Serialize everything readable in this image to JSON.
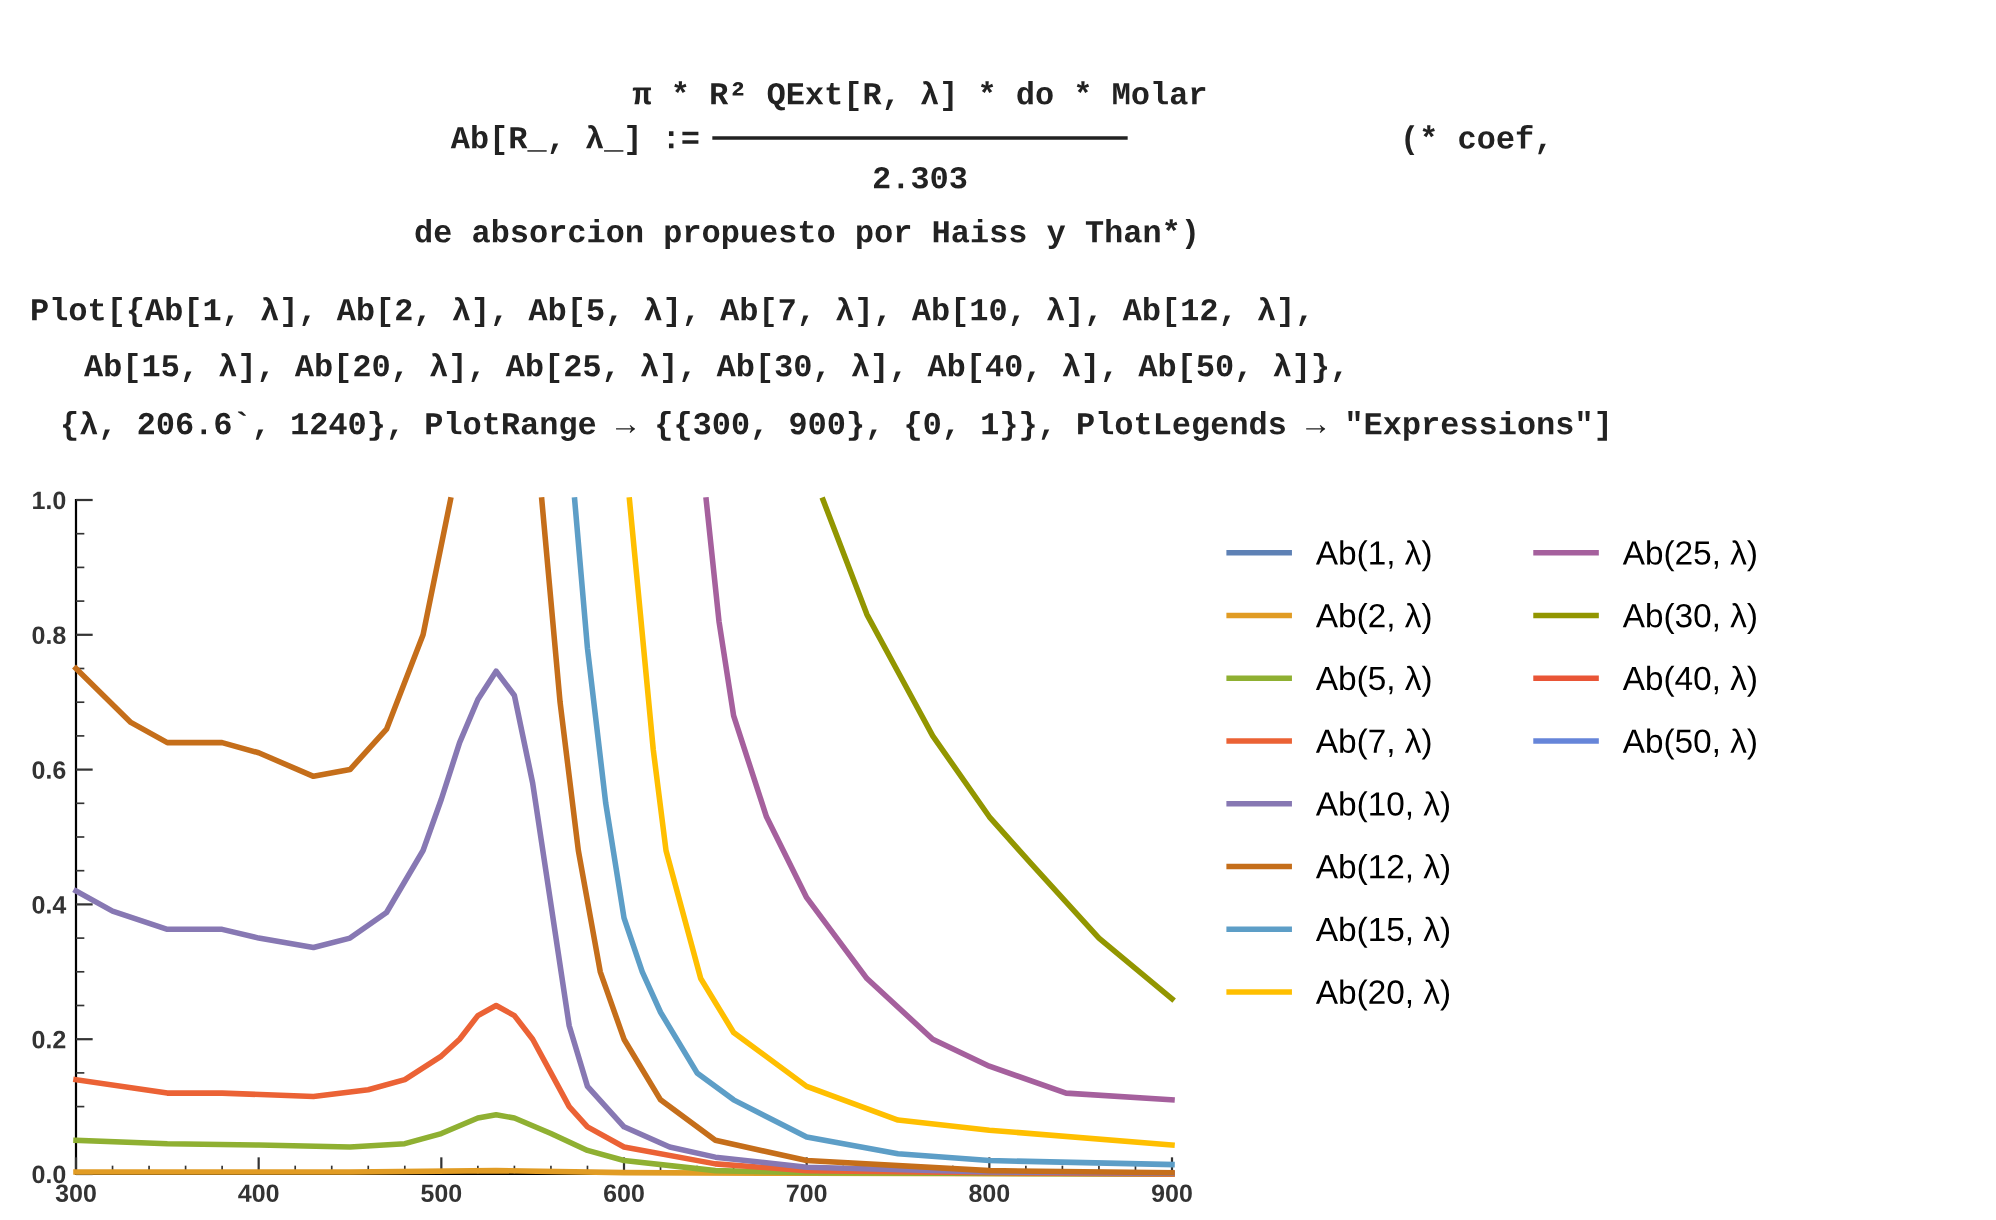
{
  "chart_data": {
    "type": "line",
    "annotations": [
      "Ab[R_, λ_] :=",
      "π * R² QExt[R, λ] * do * Molar",
      "2.303",
      "(* coef,",
      "de absorcion propuesto por Haiss y Than*)",
      "Plot[{Ab[1, λ], Ab[2, λ], Ab[5, λ], Ab[7, λ], Ab[10, λ], Ab[12, λ],",
      "Ab[15, λ], Ab[20, λ], Ab[25, λ], Ab[30, λ], Ab[40, λ], Ab[50, λ]},",
      "{λ, 206.6`, 1240}, PlotRange → {{300, 900}, {0, 1}}, PlotLegends → \"Expressions\"]"
    ],
    "xlim": [
      300,
      900
    ],
    "ylim": [
      0,
      1
    ],
    "xticks": [
      300,
      {
        "value": 320,
        "label": null
      },
      {
        "value": 340,
        "label": null
      },
      {
        "value": 360,
        "label": null
      },
      {
        "value": 380,
        "label": null
      },
      400,
      {
        "value": 420,
        "label": null
      },
      {
        "value": 440,
        "label": null
      },
      {
        "value": 460,
        "label": null
      },
      {
        "value": 480,
        "label": null
      },
      500,
      {
        "value": 520,
        "label": null
      },
      {
        "value": 540,
        "label": null
      },
      {
        "value": 560,
        "label": null
      },
      {
        "value": 580,
        "label": null
      },
      600,
      {
        "value": 620,
        "label": null
      },
      {
        "value": 640,
        "label": null
      },
      {
        "value": 660,
        "label": null
      },
      {
        "value": 680,
        "label": null
      },
      700,
      {
        "value": 720,
        "label": null
      },
      {
        "value": 740,
        "label": null
      },
      {
        "value": 760,
        "label": null
      },
      {
        "value": 780,
        "label": null
      },
      800,
      {
        "value": 820,
        "label": null
      },
      {
        "value": 840,
        "label": null
      },
      {
        "value": 860,
        "label": null
      },
      {
        "value": 880,
        "label": null
      },
      900
    ],
    "yticks": [
      {
        "value": 0,
        "label": "0.0"
      },
      {
        "value": 0.05,
        "label": null
      },
      {
        "value": 0.1,
        "label": null
      },
      {
        "value": 0.15,
        "label": null
      },
      {
        "value": 0.2,
        "label": "0.2"
      },
      {
        "value": 0.25,
        "label": null
      },
      {
        "value": 0.3,
        "label": null
      },
      {
        "value": 0.35,
        "label": null
      },
      {
        "value": 0.4,
        "label": "0.4"
      },
      {
        "value": 0.45,
        "label": null
      },
      {
        "value": 0.5,
        "label": null
      },
      {
        "value": 0.55,
        "label": null
      },
      {
        "value": 0.6,
        "label": "0.6"
      },
      {
        "value": 0.65,
        "label": null
      },
      {
        "value": 0.7,
        "label": null
      },
      {
        "value": 0.75,
        "label": null
      },
      {
        "value": 0.8,
        "label": "0.8"
      },
      {
        "value": 0.85,
        "label": null
      },
      {
        "value": 0.9,
        "label": null
      },
      {
        "value": 0.95,
        "label": null
      },
      {
        "value": 1,
        "label": "1.0"
      }
    ],
    "legend": "right",
    "series": [
      {
        "name": "Ab(1, λ)",
        "color": "#5e81b5"
      },
      {
        "name": "Ab(2, λ)",
        "color": "#e19c24",
        "x": [
          300,
          450,
          530,
          600,
          700,
          900
        ],
        "values": [
          0.003,
          0.003,
          0.005,
          0.002,
          0.001,
          0
        ]
      },
      {
        "name": "Ab(5, λ)",
        "color": "#8fb032",
        "x": [
          300,
          350,
          400,
          450,
          480,
          500,
          520,
          530,
          540,
          560,
          580,
          600,
          650,
          700,
          900
        ],
        "values": [
          0.05,
          0.045,
          0.043,
          0.04,
          0.045,
          0.06,
          0.083,
          0.088,
          0.083,
          0.06,
          0.035,
          0.02,
          0.005,
          0.002,
          0
        ]
      },
      {
        "name": "Ab(7, λ)",
        "color": "#eb6235",
        "x": [
          300,
          350,
          380,
          430,
          460,
          480,
          500,
          510,
          520,
          530,
          540,
          550,
          560,
          570,
          580,
          600,
          650,
          700,
          800,
          900
        ],
        "values": [
          0.14,
          0.12,
          0.12,
          0.115,
          0.125,
          0.14,
          0.175,
          0.2,
          0.235,
          0.25,
          0.235,
          0.2,
          0.15,
          0.1,
          0.07,
          0.04,
          0.015,
          0.005,
          0.002,
          0
        ]
      },
      {
        "name": "Ab(10, λ)",
        "color": "#8778b3",
        "x": [
          300,
          320,
          350,
          380,
          400,
          430,
          450,
          470,
          490,
          500,
          510,
          520,
          530,
          540,
          550,
          560,
          570,
          580,
          600,
          625,
          650,
          700,
          800,
          900
        ],
        "values": [
          0.42,
          0.39,
          0.363,
          0.363,
          0.35,
          0.336,
          0.35,
          0.388,
          0.48,
          0.556,
          0.64,
          0.704,
          0.746,
          0.71,
          0.58,
          0.4,
          0.22,
          0.13,
          0.07,
          0.04,
          0.025,
          0.01,
          0.003,
          0.001
        ]
      },
      {
        "name": "Ab(12, λ)",
        "color": "#c56e1a",
        "x": [
          300,
          330,
          350,
          380,
          400,
          430,
          450,
          470,
          490,
          505,
          530,
          555,
          565,
          575,
          587,
          600,
          620,
          650,
          700,
          800,
          900
        ],
        "values": [
          0.75,
          0.67,
          0.64,
          0.64,
          0.625,
          0.59,
          0.6,
          0.66,
          0.8,
          1.0,
          null,
          1.0,
          0.7,
          0.48,
          0.3,
          0.2,
          0.11,
          0.05,
          0.02,
          0.005,
          0.002
        ]
      },
      {
        "name": "Ab(15, λ)",
        "color": "#5d9ec7",
        "x": [
          573,
          580,
          590,
          600,
          610,
          620,
          640,
          660,
          700,
          750,
          800,
          900
        ],
        "values": [
          1.0,
          0.78,
          0.55,
          0.38,
          0.3,
          0.24,
          0.15,
          0.11,
          0.055,
          0.03,
          0.02,
          0.014
        ]
      },
      {
        "name": "Ab(20, λ)",
        "color": "#ffbf00",
        "x": [
          603,
          609,
          616,
          623,
          642,
          660,
          700,
          750,
          800,
          900
        ],
        "values": [
          1.0,
          0.83,
          0.63,
          0.48,
          0.29,
          0.21,
          0.13,
          0.08,
          0.065,
          0.043
        ]
      },
      {
        "name": "Ab(25, λ)",
        "color": "#a5609d",
        "x": [
          645,
          652,
          660,
          678,
          700,
          733,
          769,
          800,
          842,
          900
        ],
        "values": [
          1.0,
          0.82,
          0.68,
          0.53,
          0.41,
          0.29,
          0.2,
          0.16,
          0.12,
          0.11
        ]
      },
      {
        "name": "Ab(30, λ)",
        "color": "#929600",
        "x": [
          709,
          733,
          751,
          769,
          800,
          823,
          860,
          900
        ],
        "values": [
          1.0,
          0.83,
          0.74,
          0.65,
          0.53,
          0.46,
          0.35,
          0.26
        ]
      },
      {
        "name": "Ab(40, λ)",
        "color": "#e95536"
      },
      {
        "name": "Ab(50, λ)",
        "color": "#6685d9"
      }
    ]
  }
}
